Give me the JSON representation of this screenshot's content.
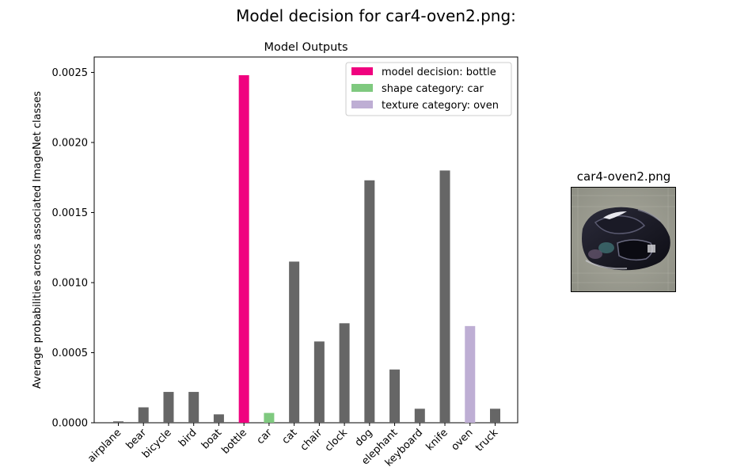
{
  "figure": {
    "suptitle": "Model decision for car4-oven2.png:",
    "image_title": "car4-oven2.png"
  },
  "chart_data": {
    "type": "bar",
    "title": "Model Outputs",
    "xlabel": "",
    "ylabel": "Average probabilities across associated ImageNet classes",
    "ylim": [
      0,
      0.00261
    ],
    "yticks": [
      0.0,
      0.0005,
      0.001,
      0.0015,
      0.002,
      0.0025
    ],
    "ytick_labels": [
      "0.0000",
      "0.0005",
      "0.0010",
      "0.0015",
      "0.0020",
      "0.0025"
    ],
    "categories": [
      "airplane",
      "bear",
      "bicycle",
      "bird",
      "boat",
      "bottle",
      "car",
      "cat",
      "chair",
      "clock",
      "dog",
      "elephant",
      "keyboard",
      "knife",
      "oven",
      "truck"
    ],
    "values": [
      1e-05,
      0.00011,
      0.00022,
      0.00022,
      6e-05,
      0.00248,
      7e-05,
      0.00115,
      0.00058,
      0.00071,
      0.00173,
      0.00038,
      0.0001,
      0.0018,
      0.00069,
      0.0001
    ],
    "colors": {
      "default": "#666666",
      "model_decision": "#f0027f",
      "shape_category": "#7fc97f",
      "texture_category": "#beaed4"
    },
    "highlight": {
      "bottle": "model_decision",
      "car": "shape_category",
      "oven": "texture_category"
    },
    "legend": {
      "placement": "upper right",
      "entries": [
        {
          "label": "model decision: bottle",
          "color": "#f0027f"
        },
        {
          "label": "shape category: car",
          "color": "#7fc97f"
        },
        {
          "label": "texture category: oven",
          "color": "#beaed4"
        }
      ]
    }
  }
}
